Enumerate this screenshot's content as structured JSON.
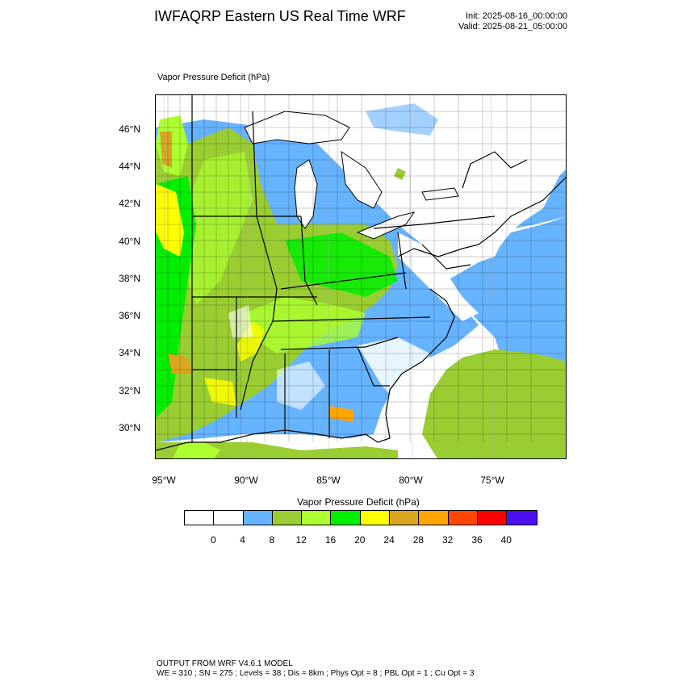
{
  "header": {
    "title": "IWFAQRP Eastern US Real Time WRF",
    "init": "Init: 2025-08-16_00:00:00",
    "valid": "Valid: 2025-08-21_05:00:00"
  },
  "map": {
    "subtitle": "Vapor Pressure Deficit   (hPa)",
    "lat_labels": [
      "46°N",
      "44°N",
      "42°N",
      "40°N",
      "38°N",
      "36°N",
      "34°N",
      "32°N",
      "30°N"
    ],
    "lon_labels": [
      "95°W",
      "90°W",
      "85°W",
      "80°W",
      "75°W"
    ]
  },
  "legend": {
    "title": "Vapor Pressure Deficit   (hPa)",
    "colors": [
      "#ffffff",
      "#ffffff",
      "#66b3ff",
      "#9acd32",
      "#adff2f",
      "#00ee00",
      "#ffff00",
      "#daa520",
      "#ffa500",
      "#ff4500",
      "#ff0000",
      "#4b0ff0"
    ],
    "labels": [
      "0",
      "4",
      "8",
      "12",
      "16",
      "20",
      "24",
      "28",
      "32",
      "36",
      "40"
    ]
  },
  "footer": {
    "line1": "OUTPUT FROM WRF V4.6.1 MODEL",
    "line2": "WE = 310 ; SN = 275 ; Levels = 38 ; Dis = 8km ; Phys Opt = 8 ; PBL Opt = 1 ; Cu Opt = 3"
  }
}
